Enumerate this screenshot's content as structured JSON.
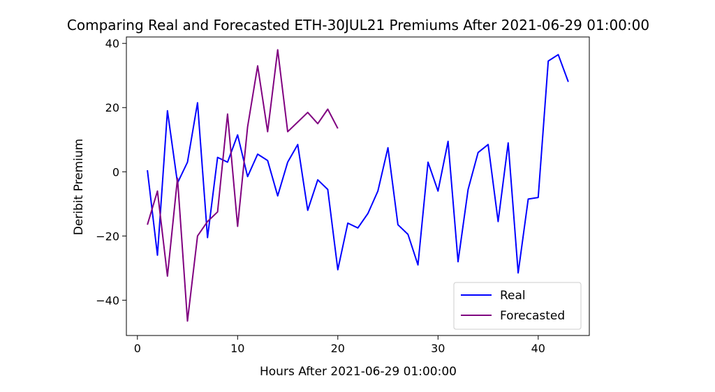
{
  "chart_data": {
    "type": "line",
    "title": "Comparing Real and Forecasted ETH-30JUL21 Premiums After 2021-06-29 01:00:00",
    "xlabel": "Hours After 2021-06-29 01:00:00",
    "ylabel": "Deribit Premium",
    "xlim": [
      -1.1,
      45.1
    ],
    "ylim": [
      -51,
      42
    ],
    "xticks": [
      0,
      10,
      20,
      30,
      40
    ],
    "yticks": [
      -40,
      -20,
      0,
      20,
      40
    ],
    "grid": false,
    "legend_position": "bottom-right",
    "series": [
      {
        "name": "Real",
        "color": "#0000ff",
        "x": [
          1,
          2,
          3,
          4,
          5,
          6,
          7,
          8,
          9,
          10,
          11,
          12,
          13,
          14,
          15,
          16,
          17,
          18,
          19,
          20,
          21,
          22,
          23,
          24,
          25,
          26,
          27,
          28,
          29,
          30,
          31,
          32,
          33,
          34,
          35,
          36,
          37,
          38,
          39,
          40,
          41,
          42,
          43
        ],
        "y": [
          0.5,
          -26,
          19,
          -3.5,
          3,
          21.5,
          -20.5,
          4.5,
          3,
          11.5,
          -1.5,
          5.5,
          3.5,
          -7.5,
          3,
          8.5,
          -12,
          -2.5,
          -5.5,
          -30.5,
          -16,
          -17.5,
          -13,
          -6,
          7.5,
          -16.5,
          -19.5,
          -29,
          3,
          -6,
          9.5,
          -28,
          -5.5,
          6,
          8.5,
          -15.5,
          9,
          -31.5,
          -8.5,
          -8,
          34.5,
          36.5,
          28
        ]
      },
      {
        "name": "Forecasted",
        "color": "#800080",
        "x": [
          1,
          2,
          3,
          4,
          5,
          6,
          7,
          8,
          9,
          10,
          11,
          12,
          13,
          14,
          15,
          16,
          17,
          18,
          19,
          20
        ],
        "y": [
          -16.5,
          -6,
          -32.5,
          -2,
          -46.5,
          -20,
          -15.5,
          -12.5,
          18,
          -17,
          14,
          33,
          12.5,
          38,
          12.5,
          15.5,
          18.5,
          15,
          19.5,
          13.5
        ]
      }
    ]
  }
}
